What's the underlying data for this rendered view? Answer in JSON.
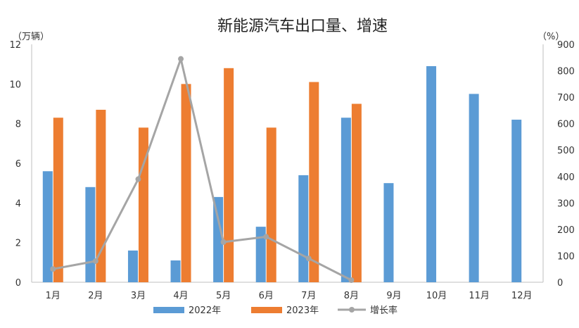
{
  "chart_data": {
    "type": "bar",
    "title": "新能源汽车出口量、增速",
    "y_left_unit": "（万辆）",
    "y_right_unit": "（%）",
    "categories": [
      "1月",
      "2月",
      "3月",
      "4月",
      "5月",
      "6月",
      "7月",
      "8月",
      "9月",
      "10月",
      "11月",
      "12月"
    ],
    "y_left_ticks": [
      "0",
      "2",
      "4",
      "6",
      "8",
      "10",
      "12"
    ],
    "y_right_ticks": [
      "0",
      "100",
      "200",
      "300",
      "400",
      "500",
      "600",
      "700",
      "800",
      "900"
    ],
    "ylim_left": [
      0,
      12
    ],
    "ylim_right": [
      0,
      900
    ],
    "series": [
      {
        "name": "2022年",
        "type": "bar",
        "axis": "left",
        "color": "#5B9BD5",
        "values": [
          5.6,
          4.8,
          1.6,
          1.1,
          4.3,
          2.8,
          5.4,
          8.3,
          5.0,
          10.9,
          9.5,
          8.2
        ]
      },
      {
        "name": "2023年",
        "type": "bar",
        "axis": "left",
        "color": "#ED7D31",
        "values": [
          8.3,
          8.7,
          7.8,
          10.0,
          10.8,
          7.8,
          10.1,
          9.0,
          null,
          null,
          null,
          null
        ]
      },
      {
        "name": "增长率",
        "type": "line",
        "axis": "right",
        "color": "#A5A5A5",
        "values": [
          50,
          80,
          390,
          845,
          152,
          172,
          90,
          8,
          null,
          null,
          null,
          null
        ]
      }
    ],
    "grid": false,
    "legend": "bottom"
  }
}
